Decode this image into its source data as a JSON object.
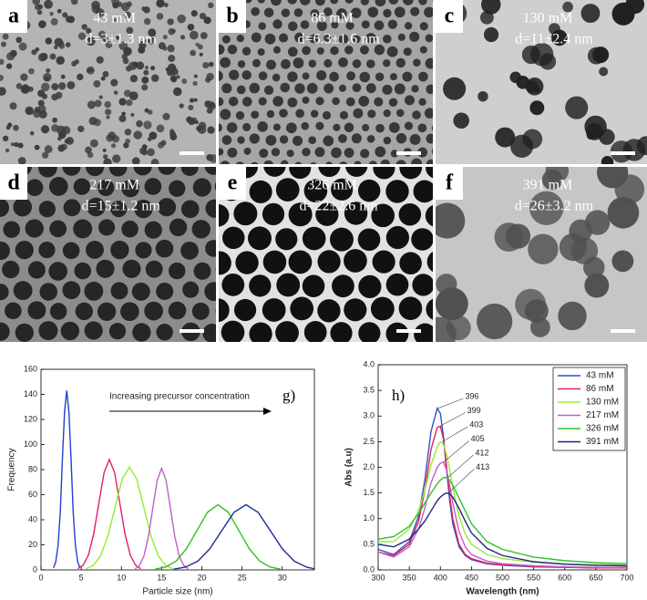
{
  "panels": [
    {
      "letter": "a",
      "concentration": "43 mM",
      "size": "d=3±1.3 nm"
    },
    {
      "letter": "b",
      "concentration": "86 mM",
      "size": "d=6.3±1.6 nm"
    },
    {
      "letter": "c",
      "concentration": "130 mM",
      "size": "d=11±2.4 nm"
    },
    {
      "letter": "d",
      "concentration": "217 mM",
      "size": "d=15±1.2 nm"
    },
    {
      "letter": "e",
      "concentration": "326 mM",
      "size": "d=22±2.6 nm"
    },
    {
      "letter": "f",
      "concentration": "391 mM",
      "size": "d=26±3.2 nm"
    }
  ],
  "chart_data": [
    {
      "type": "line",
      "panel_label": "g)",
      "annotation": "Increasing precursor concentration",
      "xlabel": "Particle size (nm)",
      "ylabel": "Frequency",
      "xlim": [
        0,
        34
      ],
      "xticks": [
        0,
        5,
        10,
        15,
        20,
        25,
        30
      ],
      "ylim": [
        0,
        160
      ],
      "yticks": [
        0,
        20,
        40,
        60,
        80,
        100,
        120,
        140,
        160
      ],
      "series": [
        {
          "color": "#2040d0",
          "x": [
            1.55,
            1.83,
            2.12,
            2.4,
            2.65,
            2.93,
            3.2,
            3.47,
            3.75,
            4.0,
            4.28,
            4.57,
            4.85
          ],
          "values": [
            1.6,
            6.3,
            19.4,
            46.4,
            86.7,
            126.2,
            143,
            126.2,
            86.7,
            46.4,
            19.4,
            6.3,
            1.6
          ]
        },
        {
          "color": "#e0206a",
          "x": [
            4.6,
            5.25,
            5.9,
            6.55,
            7.2,
            7.85,
            8.5,
            9.15,
            9.8,
            10.45,
            11.1,
            11.75,
            12.4
          ],
          "values": [
            1.0,
            3.9,
            11.9,
            28.6,
            53.4,
            77.7,
            88,
            77.7,
            53.4,
            28.6,
            11.9,
            3.9,
            1.0
          ]
        },
        {
          "color": "#90ee30",
          "x": [
            5.6,
            6.5,
            7.4,
            8.3,
            9.2,
            10.1,
            11,
            11.9,
            12.8,
            13.7,
            14.6,
            15.5,
            16.4
          ],
          "values": [
            0.9,
            3.6,
            11.1,
            26.6,
            49.7,
            72.4,
            82,
            72.4,
            49.7,
            26.6,
            11.1,
            3.6,
            0.9
          ]
        },
        {
          "color": "#c060c8",
          "x": [
            11.7,
            12.25,
            12.8,
            13.35,
            13.9,
            14.45,
            15,
            15.55,
            16.1,
            16.65,
            17.2,
            17.75,
            18.3
          ],
          "values": [
            0.9,
            3.6,
            11.0,
            26.3,
            49.1,
            71.5,
            81,
            71.5,
            49.1,
            26.3,
            11.0,
            3.6,
            0.9
          ]
        },
        {
          "color": "#30c020",
          "x": [
            14.2,
            15.5,
            16.8,
            18.1,
            19.4,
            20.7,
            22,
            23.3,
            24.6,
            25.9,
            27.2,
            28.5,
            29.8
          ],
          "values": [
            0.6,
            2.3,
            7.0,
            16.9,
            31.5,
            45.9,
            52,
            45.9,
            31.5,
            16.9,
            7.0,
            2.3,
            0.6
          ]
        },
        {
          "color": "#2030a0",
          "x": [
            16.5,
            18,
            19.5,
            21,
            22.5,
            24,
            25.5,
            27,
            28.5,
            30,
            31.5,
            33,
            34
          ],
          "values": [
            0.6,
            2.3,
            7.0,
            16.9,
            31.5,
            45.9,
            52,
            45.9,
            31.5,
            16.9,
            7.0,
            2.3,
            0.9
          ]
        }
      ]
    },
    {
      "type": "line",
      "panel_label": "h)",
      "xlabel": "Wavelength (nm)",
      "ylabel": "Abs (a.u)",
      "legend": "upper right",
      "x": [
        300,
        325,
        350,
        365,
        375,
        385,
        395,
        400,
        405,
        410,
        415,
        420,
        430,
        440,
        450,
        475,
        500,
        550,
        600,
        650,
        700
      ],
      "xlim": [
        300,
        700
      ],
      "xticks": [
        300,
        350,
        400,
        450,
        500,
        550,
        600,
        650,
        700
      ],
      "ylim": [
        0,
        4
      ],
      "yticks": [
        {
          "value": 0,
          "label": "0.0"
        },
        {
          "value": 0.5,
          "label": "0.5"
        },
        {
          "value": 1,
          "label": "1.0"
        },
        {
          "value": 1.5,
          "label": "1.5"
        },
        {
          "value": 2,
          "label": "2.0"
        },
        {
          "value": 2.5,
          "label": "2.5"
        },
        {
          "value": 3,
          "label": "3.0"
        },
        {
          "value": 3.5,
          "label": "3.5"
        },
        {
          "value": 4,
          "label": "4.0"
        }
      ],
      "series": [
        {
          "name": "43 mM",
          "color": "#3050c8",
          "peak": 396,
          "values": [
            0.4,
            0.3,
            0.55,
            1.05,
            1.75,
            2.7,
            3.15,
            3.05,
            2.6,
            1.95,
            1.35,
            0.9,
            0.45,
            0.28,
            0.2,
            0.12,
            0.09,
            0.06,
            0.05,
            0.04,
            0.04
          ]
        },
        {
          "name": "86 mM",
          "color": "#e0205a",
          "peak": 399,
          "values": [
            0.35,
            0.28,
            0.5,
            0.95,
            1.55,
            2.35,
            2.78,
            2.8,
            2.55,
            2.0,
            1.45,
            1.0,
            0.5,
            0.3,
            0.22,
            0.13,
            0.1,
            0.07,
            0.05,
            0.04,
            0.04
          ]
        },
        {
          "name": "130 mM",
          "color": "#98e840",
          "peak": 403,
          "values": [
            0.55,
            0.55,
            0.8,
            1.15,
            1.55,
            2.05,
            2.4,
            2.5,
            2.45,
            2.25,
            1.95,
            1.6,
            1.05,
            0.7,
            0.5,
            0.3,
            0.22,
            0.15,
            0.12,
            0.1,
            0.09
          ]
        },
        {
          "name": "217 mM",
          "color": "#c060c0",
          "peak": 405,
          "values": [
            0.35,
            0.25,
            0.45,
            0.8,
            1.2,
            1.7,
            2.0,
            2.08,
            2.1,
            1.95,
            1.65,
            1.3,
            0.75,
            0.45,
            0.3,
            0.17,
            0.12,
            0.08,
            0.06,
            0.05,
            0.05
          ]
        },
        {
          "name": "326 mM",
          "color": "#30c030",
          "peak": 412,
          "values": [
            0.6,
            0.65,
            0.85,
            1.1,
            1.3,
            1.5,
            1.68,
            1.75,
            1.8,
            1.8,
            1.75,
            1.65,
            1.4,
            1.15,
            0.9,
            0.55,
            0.4,
            0.25,
            0.18,
            0.14,
            0.12
          ]
        },
        {
          "name": "391 mM",
          "color": "#202880",
          "peak": 413,
          "values": [
            0.5,
            0.45,
            0.6,
            0.8,
            0.95,
            1.15,
            1.35,
            1.42,
            1.47,
            1.5,
            1.48,
            1.42,
            1.2,
            0.95,
            0.72,
            0.42,
            0.28,
            0.16,
            0.11,
            0.09,
            0.08
          ]
        }
      ]
    }
  ]
}
